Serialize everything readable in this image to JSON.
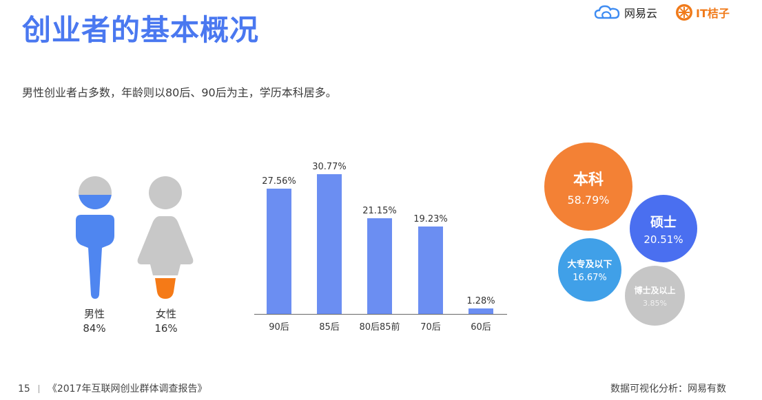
{
  "page": {
    "title": "创业者的基本概况",
    "subtitle": "男性创业者占多数，年龄则以80后、90后为主，学历本科居多。"
  },
  "logos": {
    "netease": "网易云",
    "itjuzi": "IT桔子"
  },
  "gender": [
    {
      "label": "男性",
      "value": "84%"
    },
    {
      "label": "女性",
      "value": "16%"
    }
  ],
  "chart_data": {
    "type": "bar",
    "categories": [
      "90后",
      "85后",
      "80后85前",
      "70后",
      "60后"
    ],
    "values": [
      27.56,
      30.77,
      21.15,
      19.23,
      1.28
    ],
    "value_labels": [
      "27.56%",
      "30.77%",
      "21.15%",
      "19.23%",
      "1.28%"
    ],
    "title": "",
    "xlabel": "",
    "ylabel": "",
    "ylim": [
      0,
      33.7
    ],
    "grid": false
  },
  "education": [
    {
      "label": "本科",
      "value": "58.79%"
    },
    {
      "label": "硕士",
      "value": "20.51%"
    },
    {
      "label": "大专及以下",
      "value": "16.67%"
    },
    {
      "label": "博士及以上",
      "value": "3.85%"
    }
  ],
  "footer": {
    "page_number": "15",
    "report": "《2017年互联网创业群体调查报告》",
    "source": "数据可视化分析：网易有数"
  },
  "colors": {
    "title": "#4a78f0",
    "bar": "#6b8ef2",
    "male": "#4f86f0",
    "female_accent": "#f57a17",
    "person_gray": "#c8c8c8",
    "bachelor": "#f38135",
    "master": "#4a6ff0",
    "junior_college": "#40a0e8",
    "doctor": "#c6c6c6"
  }
}
